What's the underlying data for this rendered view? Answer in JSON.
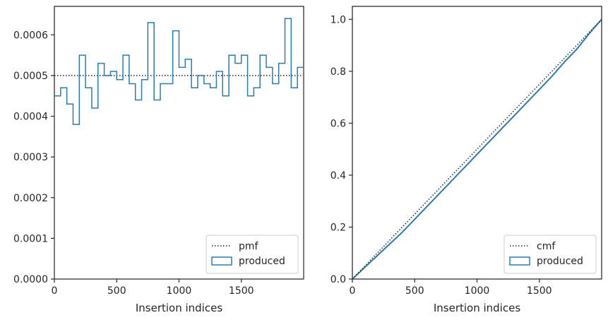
{
  "chart_data": [
    {
      "type": "step",
      "xlabel": "Insertion indices",
      "ylabel": "",
      "xlim": [
        0,
        2000
      ],
      "ylim": [
        0,
        0.00067
      ],
      "xticks": [
        0,
        500,
        1000,
        1500
      ],
      "xtick_labels": [
        "0",
        "500",
        "1000",
        "1500"
      ],
      "yticks": [
        0,
        0.0001,
        0.0002,
        0.0003,
        0.0004,
        0.0005,
        0.0006
      ],
      "ytick_labels": [
        "0.0000",
        "0.0001",
        "0.0002",
        "0.0003",
        "0.0004",
        "0.0005",
        "0.0006"
      ],
      "legend_position": "lower-right",
      "reference": {
        "name": "pmf",
        "value": 0.0005,
        "style": "dotted",
        "color": "#262626"
      },
      "series": [
        {
          "name": "produced",
          "color": "#2b7bb0",
          "bin_edges": [
            0,
            50,
            100,
            150,
            200,
            250,
            300,
            350,
            400,
            450,
            500,
            550,
            600,
            650,
            700,
            750,
            800,
            850,
            900,
            950,
            1000,
            1050,
            1100,
            1150,
            1200,
            1250,
            1300,
            1350,
            1400,
            1450,
            1500,
            1550,
            1600,
            1650,
            1700,
            1750,
            1800,
            1850,
            1900,
            1950,
            2000
          ],
          "values": [
            0.00045,
            0.00047,
            0.00043,
            0.00038,
            0.00055,
            0.00047,
            0.00042,
            0.00053,
            0.0005,
            0.00051,
            0.00049,
            0.00055,
            0.00048,
            0.00044,
            0.00049,
            0.00063,
            0.00044,
            0.00048,
            0.00048,
            0.00061,
            0.00052,
            0.00054,
            0.00047,
            0.0005,
            0.00048,
            0.00047,
            0.00051,
            0.00045,
            0.00055,
            0.00053,
            0.00055,
            0.00045,
            0.00047,
            0.00055,
            0.00052,
            0.00048,
            0.00053,
            0.00064,
            0.00047,
            0.00052
          ]
        }
      ]
    },
    {
      "type": "line",
      "xlabel": "Insertion indices",
      "ylabel": "",
      "xlim": [
        0,
        2000
      ],
      "ylim": [
        0,
        1.05
      ],
      "xticks": [
        0,
        500,
        1000,
        1500
      ],
      "xtick_labels": [
        "0",
        "500",
        "1000",
        "1500"
      ],
      "yticks": [
        0,
        0.2,
        0.4,
        0.6,
        0.8,
        1.0
      ],
      "ytick_labels": [
        "0.0",
        "0.2",
        "0.4",
        "0.6",
        "0.8",
        "1.0"
      ],
      "legend_position": "lower-right",
      "reference": {
        "name": "cmf",
        "x": [
          0,
          2000
        ],
        "y": [
          0,
          1.0
        ],
        "style": "dotted",
        "color": "#262626"
      },
      "series": [
        {
          "name": "produced",
          "color": "#2b7bb0",
          "x": [
            0,
            100,
            200,
            300,
            400,
            500,
            600,
            700,
            800,
            900,
            1000,
            1100,
            1200,
            1300,
            1400,
            1500,
            1600,
            1700,
            1800,
            1900,
            2000
          ],
          "y": [
            0,
            0.045,
            0.09,
            0.135,
            0.18,
            0.23,
            0.28,
            0.33,
            0.38,
            0.43,
            0.48,
            0.53,
            0.58,
            0.63,
            0.68,
            0.73,
            0.78,
            0.835,
            0.885,
            0.945,
            1.0
          ]
        }
      ]
    }
  ]
}
